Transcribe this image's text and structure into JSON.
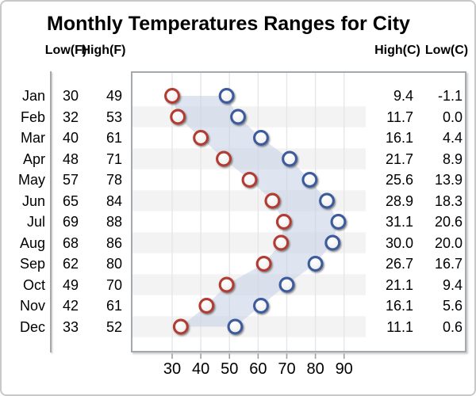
{
  "title": "Monthly Temperatures Ranges for City",
  "headers": {
    "low_f": "Low(F)",
    "high_f": "High(F)",
    "high_c": "High(C)",
    "low_c": "Low(C)"
  },
  "colors": {
    "low_marker": "#b23b31",
    "high_marker": "#3c5a9c",
    "marker_fill": "#ffffff",
    "band_fill": "#c3d0e4",
    "row_alt": "#f3f3f3",
    "grid": "#e6e6e6",
    "plot_border": "#a4a9ad",
    "axis": "#9ba0a5",
    "figure_border": "#c9c9c9",
    "text": "#000000"
  },
  "chart_data": {
    "type": "scatter",
    "title": "Monthly Temperatures Ranges for City",
    "categories": [
      "Jan",
      "Feb",
      "Mar",
      "Apr",
      "May",
      "Jun",
      "Jul",
      "Aug",
      "Sep",
      "Oct",
      "Nov",
      "Dec"
    ],
    "series": [
      {
        "name": "Low(F)",
        "values": [
          30,
          32,
          40,
          48,
          57,
          65,
          69,
          68,
          62,
          49,
          42,
          33
        ]
      },
      {
        "name": "High(F)",
        "values": [
          49,
          53,
          61,
          71,
          78,
          84,
          88,
          86,
          80,
          70,
          61,
          52
        ]
      }
    ],
    "value_table": {
      "high_c": [
        "9.4",
        "11.7",
        "16.1",
        "21.7",
        "25.6",
        "28.9",
        "31.1",
        "30.0",
        "26.7",
        "21.1",
        "16.1",
        "11.1"
      ],
      "low_c": [
        "-1.1",
        "0.0",
        "4.4",
        "8.9",
        "13.9",
        "18.3",
        "20.6",
        "20.0",
        "16.7",
        "9.4",
        "5.6",
        "0.6"
      ]
    },
    "xticks": [
      30,
      40,
      50,
      60,
      70,
      80,
      90
    ],
    "xlim": [
      16,
      98
    ],
    "ylabel": "",
    "xlabel": "",
    "grid": "vertical",
    "alternate_row_shading": true,
    "band_between_series": true,
    "legend": "none",
    "marker_style": "open-circle"
  }
}
